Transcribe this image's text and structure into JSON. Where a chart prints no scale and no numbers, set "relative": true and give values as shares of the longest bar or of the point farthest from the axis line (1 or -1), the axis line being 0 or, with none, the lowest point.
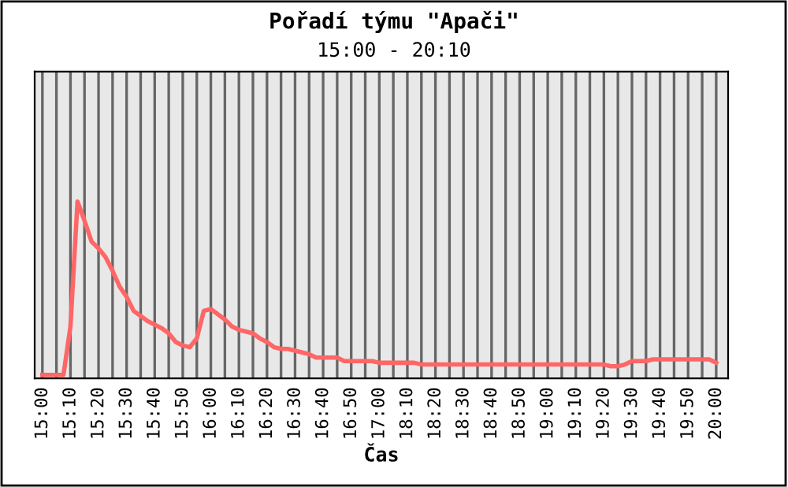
{
  "chart_data": {
    "type": "line",
    "title": "Pořadí týmu \"Apači\"",
    "subtitle": "15:00 - 20:10",
    "xlabel": "Čas",
    "relative": true,
    "grid": "x",
    "legend": false,
    "categories": [
      "15:00",
      null,
      null,
      null,
      "15:10",
      null,
      null,
      null,
      "15:20",
      null,
      null,
      null,
      "15:30",
      null,
      null,
      null,
      "15:40",
      null,
      null,
      null,
      "15:50",
      null,
      null,
      null,
      "16:00",
      null,
      null,
      null,
      "16:10",
      null,
      null,
      null,
      "16:20",
      null,
      null,
      null,
      "16:30",
      null,
      null,
      null,
      "16:40",
      null,
      null,
      null,
      "16:50",
      null,
      null,
      null,
      "17:00",
      null,
      null,
      null,
      "18:10",
      null,
      null,
      null,
      "18:20",
      null,
      null,
      null,
      "18:30",
      null,
      null,
      null,
      "18:40",
      null,
      null,
      null,
      "18:50",
      null,
      null,
      null,
      "19:00",
      null,
      null,
      null,
      "19:10",
      null,
      null,
      null,
      "19:20",
      null,
      null,
      null,
      "19:30",
      null,
      null,
      null,
      "19:40",
      null,
      null,
      null,
      "19:50",
      null,
      null,
      null,
      "20:00"
    ],
    "series": [
      {
        "color": "#ff6666",
        "values": [
          0,
          0,
          0,
          0,
          0.28,
          1,
          0.89,
          0.77,
          0.73,
          0.68,
          0.6,
          0.51,
          0.45,
          0.37,
          0.34,
          0.31,
          0.29,
          0.27,
          0.24,
          0.19,
          0.17,
          0.16,
          0.21,
          0.37,
          0.38,
          0.35,
          0.32,
          0.28,
          0.26,
          0.25,
          0.24,
          0.21,
          0.19,
          0.16,
          0.15,
          0.15,
          0.14,
          0.13,
          0.12,
          0.1,
          0.1,
          0.1,
          0.1,
          0.08,
          0.08,
          0.08,
          0.08,
          0.08,
          0.07,
          0.07,
          0.07,
          0.07,
          0.07,
          0.07,
          0.06,
          0.06,
          0.06,
          0.06,
          0.06,
          0.06,
          0.06,
          0.06,
          0.06,
          0.06,
          0.06,
          0.06,
          0.06,
          0.06,
          0.06,
          0.06,
          0.06,
          0.06,
          0.06,
          0.06,
          0.06,
          0.06,
          0.06,
          0.06,
          0.06,
          0.06,
          0.06,
          0.05,
          0.05,
          0.06,
          0.08,
          0.08,
          0.08,
          0.09,
          0.09,
          0.09,
          0.09,
          0.09,
          0.09,
          0.09,
          0.09,
          0.09,
          0.07
        ]
      }
    ]
  }
}
